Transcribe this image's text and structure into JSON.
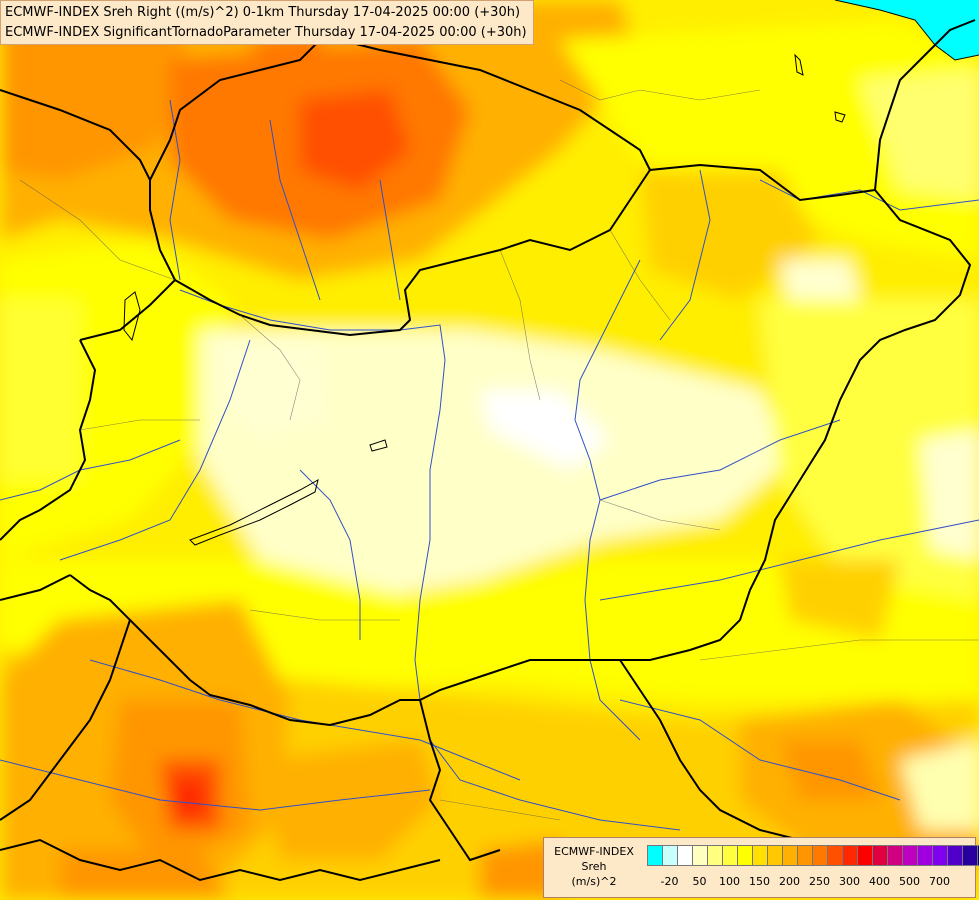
{
  "header": {
    "line1": "ECMWF-INDEX Sreh Right ((m/s)^2) 0-1km Thursday 17-04-2025 00:00 (+30h)",
    "line2": "ECMWF-INDEX SignificantTornadoParameter Thursday 17-04-2025 00:00 (+30h)"
  },
  "legend": {
    "model": "ECMWF-INDEX",
    "variable": "Sreh",
    "unit": "(m/s)^2",
    "colors": [
      "#00ffff",
      "#c8ffff",
      "#ffffff",
      "#ffffc0",
      "#ffff80",
      "#ffff40",
      "#ffff00",
      "#ffe000",
      "#ffc800",
      "#ffb000",
      "#ff9600",
      "#ff7800",
      "#ff5000",
      "#ff2800",
      "#ff0000",
      "#e00040",
      "#d00080",
      "#c000c0",
      "#a000e0",
      "#8000f0",
      "#5000c8",
      "#2800a0",
      "#000080"
    ],
    "ticks": [
      "-20",
      "50",
      "100",
      "150",
      "200",
      "250",
      "300",
      "400",
      "500",
      "700"
    ]
  },
  "map": {
    "field_colors": {
      "pale": "#ffffd2",
      "light": "#ffff80",
      "yellow": "#ffff00",
      "gold": "#ffdd00",
      "amber": "#ffbe00",
      "orange": "#ff9d00",
      "dark_orange": "#ff7800",
      "red_orange": "#ff5000",
      "red": "#ff2000",
      "sea": "#00ffff"
    }
  }
}
